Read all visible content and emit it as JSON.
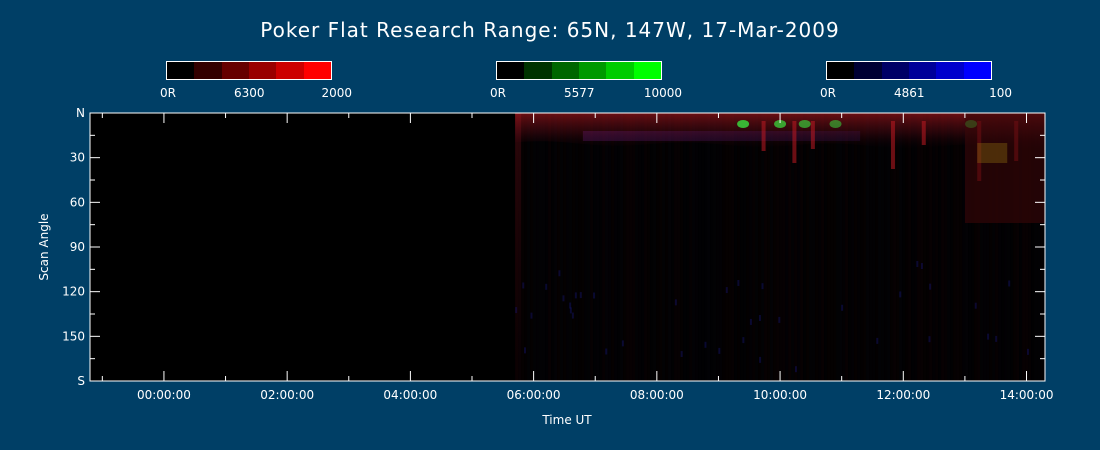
{
  "chart_data": {
    "type": "heatmap",
    "title": "Poker Flat Research Range: 65N, 147W, 17-Mar-2009",
    "xlabel": "Time UT",
    "ylabel": "Scan Angle",
    "x_ticks": [
      "00:00:00",
      "02:00:00",
      "04:00:00",
      "06:00:00",
      "08:00:00",
      "10:00:00",
      "12:00:00",
      "14:00:00"
    ],
    "x_tick_hours": [
      0,
      2,
      4,
      6,
      8,
      10,
      12,
      14
    ],
    "xlim_hours": [
      -1.2,
      14.3
    ],
    "y_ticks": [
      "N",
      "30",
      "60",
      "90",
      "120",
      "150",
      "S"
    ],
    "y_tick_values": [
      0,
      30,
      60,
      90,
      120,
      150,
      180
    ],
    "ylim": [
      0,
      180
    ],
    "data_start_hour": 5.7,
    "colorbars": [
      {
        "name": "6300",
        "min_label": "0R",
        "max_label": "2000",
        "color": "#ff0000"
      },
      {
        "name": "5577",
        "min_label": "0R",
        "max_label": "10000",
        "color": "#00ff00"
      },
      {
        "name": "4861",
        "min_label": "0R",
        "max_label": "100",
        "color": "#0000ff"
      }
    ]
  }
}
